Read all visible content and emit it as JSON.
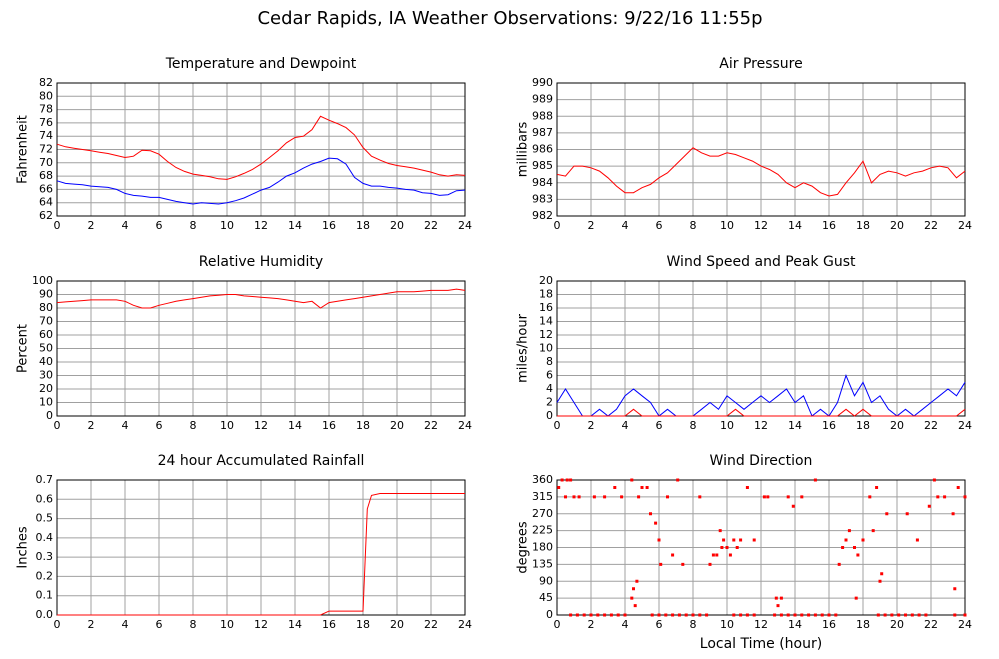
{
  "title": "Cedar Rapids, IA Weather Observations: 9/22/16 11:55p",
  "chart_data": [
    {
      "type": "line",
      "title": "Temperature and Dewpoint",
      "ylabel": "Fahrenheit",
      "x": [
        0,
        0.5,
        1,
        1.5,
        2,
        2.5,
        3,
        3.5,
        4,
        4.5,
        5,
        5.5,
        6,
        6.5,
        7,
        7.5,
        8,
        8.5,
        9,
        9.5,
        10,
        10.5,
        11,
        11.5,
        12,
        12.5,
        13,
        13.5,
        14,
        14.5,
        15,
        15.5,
        16,
        16.5,
        17,
        17.5,
        18,
        18.5,
        19,
        19.5,
        20,
        20.5,
        21,
        21.5,
        22,
        22.5,
        23,
        23.5,
        24
      ],
      "series": [
        {
          "color": "#ff0000",
          "values": [
            72.8,
            72.4,
            72.2,
            72.0,
            71.8,
            71.6,
            71.4,
            71.1,
            70.8,
            71.0,
            71.9,
            71.8,
            71.3,
            70.2,
            69.3,
            68.7,
            68.3,
            68.1,
            67.9,
            67.6,
            67.5,
            67.9,
            68.4,
            69.0,
            69.8,
            70.8,
            71.8,
            73.0,
            73.8,
            74.0,
            75.0,
            77.0,
            76.4,
            75.9,
            75.3,
            74.2,
            72.3,
            71.0,
            70.4,
            69.9,
            69.6,
            69.4,
            69.2,
            68.9,
            68.6,
            68.2,
            68.0,
            68.2,
            68.1
          ]
        },
        {
          "color": "#0000ff",
          "values": [
            67.3,
            66.9,
            66.8,
            66.7,
            66.5,
            66.4,
            66.3,
            66.0,
            65.4,
            65.1,
            65.0,
            64.8,
            64.8,
            64.5,
            64.2,
            64.0,
            63.8,
            64.0,
            63.9,
            63.8,
            64.0,
            64.3,
            64.7,
            65.3,
            65.9,
            66.3,
            67.1,
            68.0,
            68.5,
            69.2,
            69.8,
            70.2,
            70.7,
            70.6,
            69.8,
            67.8,
            66.9,
            66.5,
            66.5,
            66.3,
            66.2,
            66.0,
            65.9,
            65.5,
            65.4,
            65.1,
            65.2,
            65.8,
            65.9
          ]
        }
      ],
      "xlim": [
        0,
        24
      ],
      "ylim": [
        62,
        82
      ],
      "xticks": [
        0,
        2,
        4,
        6,
        8,
        10,
        12,
        14,
        16,
        18,
        20,
        22,
        24
      ],
      "yticks": [
        62,
        64,
        66,
        68,
        70,
        72,
        74,
        76,
        78,
        80,
        82
      ],
      "grid": true
    },
    {
      "type": "line",
      "title": "Air Pressure",
      "ylabel": "millibars",
      "x": [
        0,
        0.5,
        1,
        1.5,
        2,
        2.5,
        3,
        3.5,
        4,
        4.5,
        5,
        5.5,
        6,
        6.5,
        7,
        7.5,
        8,
        8.5,
        9,
        9.5,
        10,
        10.5,
        11,
        11.5,
        12,
        12.5,
        13,
        13.5,
        14,
        14.5,
        15,
        15.5,
        16,
        16.5,
        17,
        17.5,
        18,
        18.5,
        19,
        19.5,
        20,
        20.5,
        21,
        21.5,
        22,
        22.5,
        23,
        23.5,
        24
      ],
      "series": [
        {
          "color": "#ff0000",
          "values": [
            984.5,
            984.4,
            985.0,
            985.0,
            984.9,
            984.7,
            984.3,
            983.8,
            983.4,
            983.4,
            983.7,
            983.9,
            984.3,
            984.6,
            985.1,
            985.6,
            986.1,
            985.8,
            985.6,
            985.6,
            985.8,
            985.7,
            985.5,
            985.3,
            985.0,
            984.8,
            984.5,
            984.0,
            983.7,
            984.0,
            983.8,
            983.4,
            983.2,
            983.3,
            984.0,
            984.6,
            985.3,
            984.0,
            984.5,
            984.7,
            984.6,
            984.4,
            984.6,
            984.7,
            984.9,
            985.0,
            984.9,
            984.3,
            984.7
          ]
        }
      ],
      "xlim": [
        0,
        24
      ],
      "ylim": [
        982,
        990
      ],
      "xticks": [
        0,
        2,
        4,
        6,
        8,
        10,
        12,
        14,
        16,
        18,
        20,
        22,
        24
      ],
      "yticks": [
        982,
        983,
        984,
        985,
        986,
        987,
        988,
        989,
        990
      ],
      "grid": true
    },
    {
      "type": "line",
      "title": "Relative Humidity",
      "ylabel": "Percent",
      "x": [
        0,
        0.5,
        1,
        1.5,
        2,
        2.5,
        3,
        3.5,
        4,
        4.5,
        5,
        5.5,
        6,
        6.5,
        7,
        7.5,
        8,
        8.5,
        9,
        9.5,
        10,
        10.5,
        11,
        11.5,
        12,
        12.5,
        13,
        13.5,
        14,
        14.5,
        15,
        15.5,
        16,
        16.5,
        17,
        17.5,
        18,
        18.5,
        19,
        19.5,
        20,
        20.5,
        21,
        21.5,
        22,
        22.5,
        23,
        23.5,
        24
      ],
      "series": [
        {
          "color": "#ff0000",
          "values": [
            84,
            84.5,
            85,
            85.5,
            86,
            86,
            86,
            86,
            85,
            82,
            80,
            80,
            82,
            83.5,
            85,
            86,
            87,
            88,
            89,
            89.5,
            90,
            90,
            89,
            88.5,
            88,
            87.5,
            87,
            86,
            85,
            84,
            85,
            80,
            84,
            85,
            86,
            87,
            88,
            89,
            90,
            91,
            92,
            92,
            92,
            92.5,
            93,
            93,
            93,
            94,
            93
          ]
        }
      ],
      "xlim": [
        0,
        24
      ],
      "ylim": [
        0,
        100
      ],
      "xticks": [
        0,
        2,
        4,
        6,
        8,
        10,
        12,
        14,
        16,
        18,
        20,
        22,
        24
      ],
      "yticks": [
        0,
        10,
        20,
        30,
        40,
        50,
        60,
        70,
        80,
        90,
        100
      ],
      "grid": true
    },
    {
      "type": "line",
      "title": "Wind Speed and Peak Gust",
      "ylabel": "miles/hour",
      "x": [
        0,
        0.5,
        1,
        1.5,
        2,
        2.5,
        3,
        3.5,
        4,
        4.5,
        5,
        5.5,
        6,
        6.5,
        7,
        7.5,
        8,
        8.5,
        9,
        9.5,
        10,
        10.5,
        11,
        11.5,
        12,
        12.5,
        13,
        13.5,
        14,
        14.5,
        15,
        15.5,
        16,
        16.5,
        17,
        17.5,
        18,
        18.5,
        19,
        19.5,
        20,
        20.5,
        21,
        21.5,
        22,
        22.5,
        23,
        23.5,
        24
      ],
      "series": [
        {
          "color": "#0000ff",
          "values": [
            2,
            4,
            2,
            0,
            0,
            1,
            0,
            1,
            3,
            4,
            3,
            2,
            0,
            1,
            0,
            0,
            0,
            1,
            2,
            1,
            3,
            2,
            1,
            2,
            3,
            2,
            3,
            4,
            2,
            3,
            0,
            1,
            0,
            2,
            6,
            3,
            5,
            2,
            3,
            1,
            0,
            1,
            0,
            1,
            2,
            3,
            4,
            3,
            5
          ]
        },
        {
          "color": "#ff0000",
          "values": [
            0,
            0,
            0,
            0,
            0,
            0,
            0,
            0,
            0,
            1,
            0,
            0,
            0,
            0,
            0,
            0,
            0,
            0,
            0,
            0,
            0,
            1,
            0,
            0,
            0,
            0,
            0,
            0,
            0,
            0,
            0,
            0,
            0,
            0,
            1,
            0,
            1,
            0,
            0,
            0,
            0,
            0,
            0,
            0,
            0,
            0,
            0,
            0,
            1
          ]
        }
      ],
      "xlim": [
        0,
        24
      ],
      "ylim": [
        0,
        20
      ],
      "xticks": [
        0,
        2,
        4,
        6,
        8,
        10,
        12,
        14,
        16,
        18,
        20,
        22,
        24
      ],
      "yticks": [
        0,
        2,
        4,
        6,
        8,
        10,
        12,
        14,
        16,
        18,
        20
      ],
      "grid": true
    },
    {
      "type": "line",
      "title": "24 hour Accumulated Rainfall",
      "ylabel": "Inches",
      "x": [
        0,
        2,
        4,
        6,
        8,
        10,
        12,
        14,
        15.5,
        16,
        17,
        18,
        18.25,
        18.5,
        19,
        20,
        22,
        24
      ],
      "series": [
        {
          "color": "#ff0000",
          "values": [
            0,
            0,
            0,
            0,
            0,
            0,
            0,
            0,
            0,
            0.02,
            0.02,
            0.02,
            0.55,
            0.62,
            0.63,
            0.63,
            0.63,
            0.63
          ]
        }
      ],
      "xlim": [
        0,
        24
      ],
      "ylim": [
        0,
        0.7
      ],
      "xticks": [
        0,
        2,
        4,
        6,
        8,
        10,
        12,
        14,
        16,
        18,
        20,
        22,
        24
      ],
      "yticks": [
        {
          "value": 0,
          "label": "0.0"
        },
        0.1,
        0.2,
        0.3,
        0.4,
        0.5,
        0.6,
        0.7
      ],
      "grid": true
    },
    {
      "type": "scatter",
      "title": "Wind Direction",
      "ylabel": "degrees",
      "xlabel": "Local Time (hour)",
      "x": [
        0.8,
        1.2,
        1.6,
        2.0,
        2.4,
        2.8,
        3.2,
        3.6,
        4.0,
        5.6,
        6.0,
        6.4,
        6.8,
        7.2,
        7.6,
        8.0,
        8.4,
        8.8,
        10.4,
        10.8,
        11.2,
        11.6,
        12.8,
        13.2,
        13.6,
        14.0,
        14.4,
        14.8,
        15.2,
        15.6,
        16.0,
        16.4,
        18.9,
        19.3,
        19.7,
        20.1,
        20.5,
        20.9,
        21.3,
        21.7,
        23.4,
        24.0,
        0.1,
        0.3,
        0.5,
        0.6,
        0.8,
        1.0,
        1.3,
        2.2,
        2.8,
        3.4,
        3.8,
        4.4,
        4.5,
        4.6,
        4.7,
        4.4,
        4.8,
        5.0,
        5.3,
        5.5,
        5.8,
        6.0,
        6.1,
        6.5,
        6.8,
        7.1,
        7.4,
        8.4,
        9.0,
        9.2,
        9.4,
        9.6,
        9.7,
        9.8,
        10.0,
        10.2,
        10.4,
        10.6,
        10.8,
        11.2,
        11.6,
        12.2,
        12.4,
        12.9,
        13.0,
        13.2,
        13.6,
        13.9,
        14.4,
        15.2,
        16.6,
        16.8,
        17.0,
        17.2,
        17.5,
        17.7,
        18.0,
        17.6,
        18.4,
        18.6,
        18.8,
        19.0,
        19.1,
        19.4,
        20.6,
        21.2,
        21.9,
        22.2,
        22.4,
        22.8,
        23.3,
        23.4,
        23.6,
        24.0
      ],
      "series": [
        {
          "color": "#ff0000",
          "values": [
            0,
            0,
            0,
            0,
            0,
            0,
            0,
            0,
            0,
            0,
            0,
            0,
            0,
            0,
            0,
            0,
            0,
            0,
            0,
            0,
            0,
            0,
            0,
            0,
            0,
            0,
            0,
            0,
            0,
            0,
            0,
            0,
            0,
            0,
            0,
            0,
            0,
            0,
            0,
            0,
            0,
            0,
            340,
            360,
            315,
            360,
            360,
            315,
            315,
            315,
            315,
            340,
            315,
            45,
            70,
            25,
            90,
            360,
            315,
            340,
            340,
            270,
            245,
            200,
            135,
            315,
            160,
            360,
            135,
            315,
            135,
            160,
            160,
            225,
            180,
            200,
            180,
            160,
            200,
            180,
            200,
            340,
            200,
            315,
            315,
            45,
            25,
            45,
            315,
            290,
            315,
            360,
            135,
            180,
            200,
            225,
            180,
            160,
            200,
            45,
            315,
            225,
            340,
            90,
            110,
            270,
            270,
            200,
            290,
            360,
            315,
            315,
            270,
            70,
            340,
            315
          ]
        }
      ],
      "xlim": [
        0,
        24
      ],
      "ylim": [
        0,
        360
      ],
      "xticks": [
        0,
        2,
        4,
        6,
        8,
        10,
        12,
        14,
        16,
        18,
        20,
        22,
        24
      ],
      "yticks": [
        0,
        45,
        90,
        135,
        180,
        225,
        270,
        315,
        360
      ],
      "grid": true
    }
  ]
}
